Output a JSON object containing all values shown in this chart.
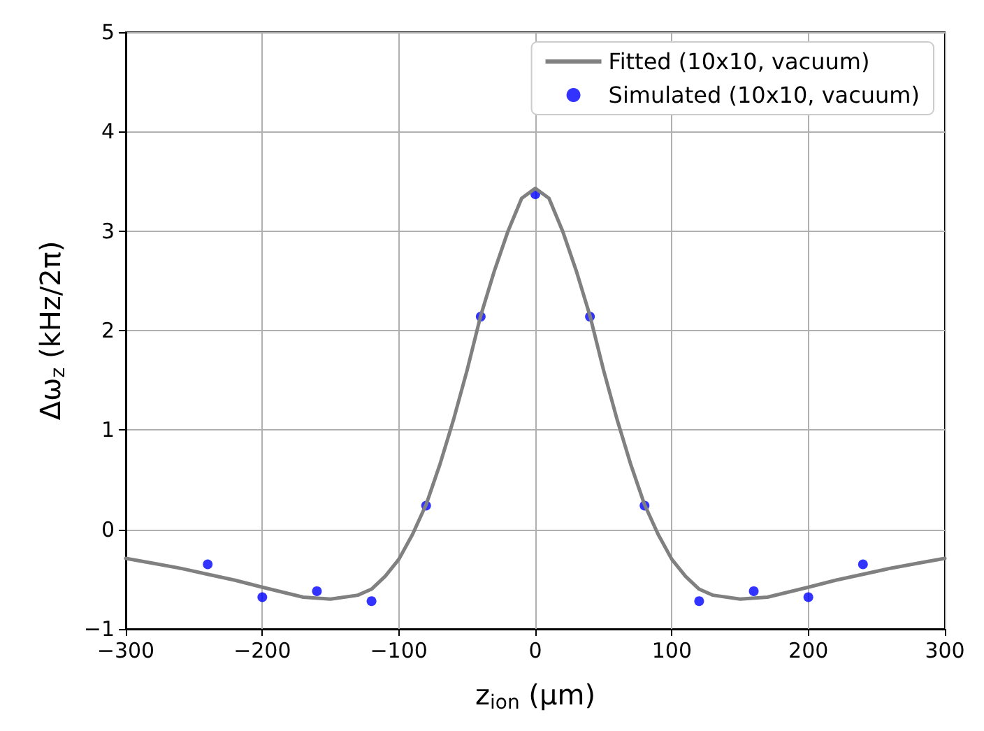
{
  "chart_data": {
    "type": "line",
    "xlabel": "z$_{ion}$ (μm)",
    "ylabel": "Δω$_{z}$ (kHz/2π)",
    "xlim": [
      -300,
      300
    ],
    "xticks": [
      {
        "value": -300,
        "label": "−300"
      },
      {
        "value": -200,
        "label": "−200"
      },
      {
        "value": -100,
        "label": "−100"
      },
      0,
      100,
      200,
      300
    ],
    "ylim": [
      -1,
      5
    ],
    "yticks": [
      {
        "value": -1,
        "label": "−1"
      },
      0,
      1,
      2,
      3,
      4,
      5
    ],
    "grid": true,
    "legend": "top right",
    "series": [
      {
        "name": "Fitted (10x10, vacuum)",
        "color": "#808080",
        "marker": "none",
        "line_style": "solid",
        "x": [
          -300,
          -280,
          -260,
          -240,
          -220,
          -200,
          -170,
          -150,
          -130,
          -120,
          -110,
          -100,
          -90,
          -80,
          -70,
          -60,
          -50,
          -40,
          -30,
          -20,
          -10,
          0,
          10,
          20,
          30,
          40,
          50,
          60,
          70,
          80,
          90,
          100,
          110,
          120,
          130,
          150,
          170,
          200,
          220,
          240,
          260,
          280,
          300
        ],
        "values": [
          -0.29,
          -0.34,
          -0.39,
          -0.45,
          -0.51,
          -0.58,
          -0.68,
          -0.7,
          -0.66,
          -0.6,
          -0.47,
          -0.3,
          -0.05,
          0.25,
          0.65,
          1.1,
          1.6,
          2.15,
          2.6,
          3.0,
          3.33,
          3.43,
          3.33,
          3.0,
          2.6,
          2.15,
          1.6,
          1.1,
          0.65,
          0.25,
          -0.05,
          -0.3,
          -0.47,
          -0.6,
          -0.66,
          -0.7,
          -0.68,
          -0.58,
          -0.51,
          -0.45,
          -0.39,
          -0.34,
          -0.29
        ]
      },
      {
        "name": "Simulated (10x10, vacuum)",
        "type": "scatter",
        "color": "#0000ff",
        "marker": "circle",
        "x": [
          -240,
          -200,
          -160,
          -120,
          -80,
          -40,
          0,
          40,
          80,
          120,
          160,
          200,
          240
        ],
        "values": [
          -0.35,
          -0.68,
          -0.62,
          -0.72,
          0.24,
          2.14,
          3.37,
          2.14,
          0.24,
          -0.72,
          -0.62,
          -0.68,
          -0.35
        ]
      }
    ]
  }
}
